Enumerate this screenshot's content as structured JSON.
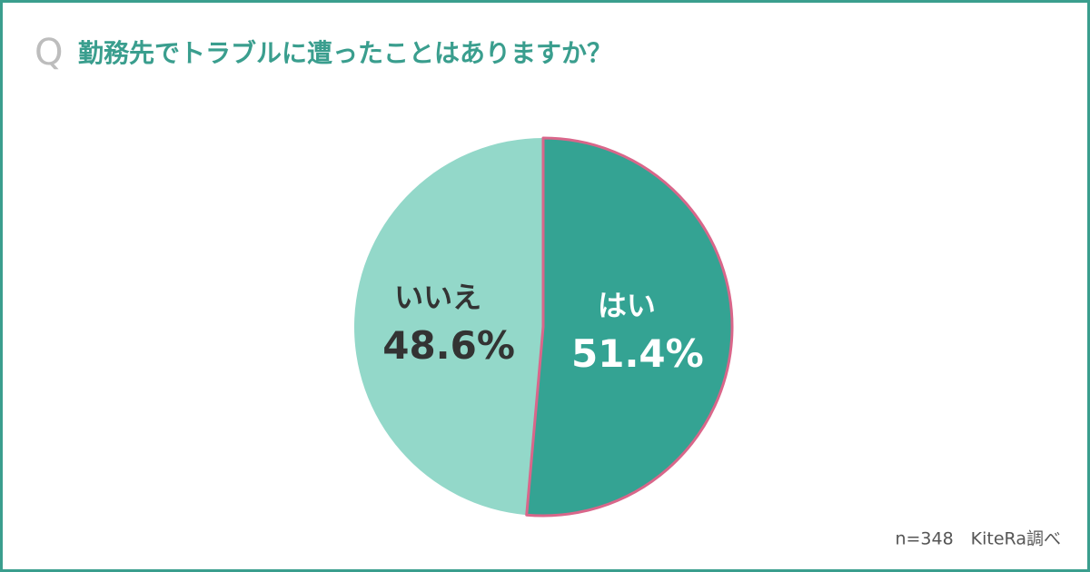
{
  "chart_data": {
    "type": "pie",
    "question_mark": "Q",
    "title": "勤務先でトラブルに遭ったことはありますか？",
    "source": "n=348　KiteRa調べ",
    "categories": [
      "はい",
      "いいえ"
    ],
    "values": [
      51.4,
      48.6
    ],
    "value_labels": [
      "51.4%",
      "48.6%"
    ],
    "colors": [
      "#34a393",
      "#93d8c9"
    ],
    "label_colors": [
      "#ffffff",
      "#333333"
    ],
    "highlight_color": "#d9668a"
  }
}
